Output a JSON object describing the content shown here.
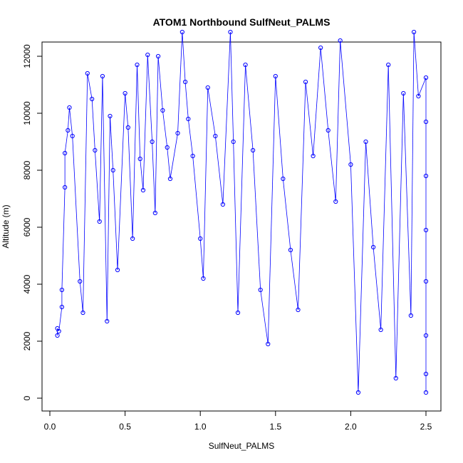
{
  "chart_data": {
    "type": "scatter",
    "title": "ATOM1 Northbound SulfNeut_PALMS",
    "xlabel": "SulfNeut_PALMS",
    "ylabel": "Altitude (m)",
    "xlim": [
      0.0,
      2.5
    ],
    "ylim": [
      0,
      12900
    ],
    "x_ticks": [
      "0.0",
      "0.5",
      "1.0",
      "1.5",
      "2.0",
      "2.5"
    ],
    "y_ticks": [
      "0",
      "2000",
      "4000",
      "6000",
      "8000",
      "10000",
      "12000"
    ],
    "grid": false,
    "legend": "none",
    "point_style": "open-circle",
    "connected": true,
    "colors": {
      "series": "#0000ff",
      "axes": "#000000",
      "background": "#ffffff"
    },
    "series": [
      {
        "points": [
          [
            0.05,
            2200
          ],
          [
            0.05,
            2450
          ],
          [
            0.06,
            2350
          ],
          [
            0.08,
            3200
          ],
          [
            0.08,
            3800
          ],
          [
            0.1,
            7400
          ],
          [
            0.1,
            8600
          ],
          [
            0.12,
            9400
          ],
          [
            0.13,
            10200
          ],
          [
            0.15,
            9200
          ],
          [
            0.2,
            4100
          ],
          [
            0.22,
            3000
          ],
          [
            0.25,
            11400
          ],
          [
            0.28,
            10500
          ],
          [
            0.3,
            8700
          ],
          [
            0.33,
            6200
          ],
          [
            0.35,
            11300
          ],
          [
            0.38,
            2700
          ],
          [
            0.4,
            9900
          ],
          [
            0.42,
            8000
          ],
          [
            0.45,
            4500
          ],
          [
            0.5,
            10700
          ],
          [
            0.52,
            9500
          ],
          [
            0.55,
            5600
          ],
          [
            0.58,
            11700
          ],
          [
            0.6,
            8400
          ],
          [
            0.62,
            7300
          ],
          [
            0.65,
            12050
          ],
          [
            0.68,
            9000
          ],
          [
            0.7,
            6500
          ],
          [
            0.72,
            12000
          ],
          [
            0.75,
            10100
          ],
          [
            0.78,
            8800
          ],
          [
            0.8,
            7700
          ],
          [
            0.85,
            9300
          ],
          [
            0.88,
            12850
          ],
          [
            0.9,
            11100
          ],
          [
            0.92,
            9800
          ],
          [
            0.95,
            8500
          ],
          [
            1.0,
            5600
          ],
          [
            1.02,
            4200
          ],
          [
            1.05,
            10900
          ],
          [
            1.1,
            9200
          ],
          [
            1.15,
            6800
          ],
          [
            1.2,
            12850
          ],
          [
            1.22,
            9000
          ],
          [
            1.25,
            3000
          ],
          [
            1.3,
            11700
          ],
          [
            1.35,
            8700
          ],
          [
            1.4,
            3800
          ],
          [
            1.45,
            1900
          ],
          [
            1.5,
            11300
          ],
          [
            1.55,
            7700
          ],
          [
            1.6,
            5200
          ],
          [
            1.65,
            3100
          ],
          [
            1.7,
            11100
          ],
          [
            1.75,
            8500
          ],
          [
            1.8,
            12300
          ],
          [
            1.85,
            9400
          ],
          [
            1.9,
            6900
          ],
          [
            1.93,
            12550
          ],
          [
            2.0,
            8200
          ],
          [
            2.05,
            200
          ],
          [
            2.1,
            9000
          ],
          [
            2.15,
            5300
          ],
          [
            2.2,
            2400
          ],
          [
            2.25,
            11700
          ],
          [
            2.3,
            700
          ],
          [
            2.35,
            10700
          ],
          [
            2.4,
            2900
          ],
          [
            2.42,
            12850
          ],
          [
            2.45,
            10600
          ],
          [
            2.5,
            11250
          ],
          [
            2.5,
            9700
          ],
          [
            2.5,
            7800
          ],
          [
            2.5,
            5900
          ],
          [
            2.5,
            4100
          ],
          [
            2.5,
            2200
          ],
          [
            2.5,
            850
          ],
          [
            2.5,
            200
          ]
        ]
      }
    ]
  }
}
